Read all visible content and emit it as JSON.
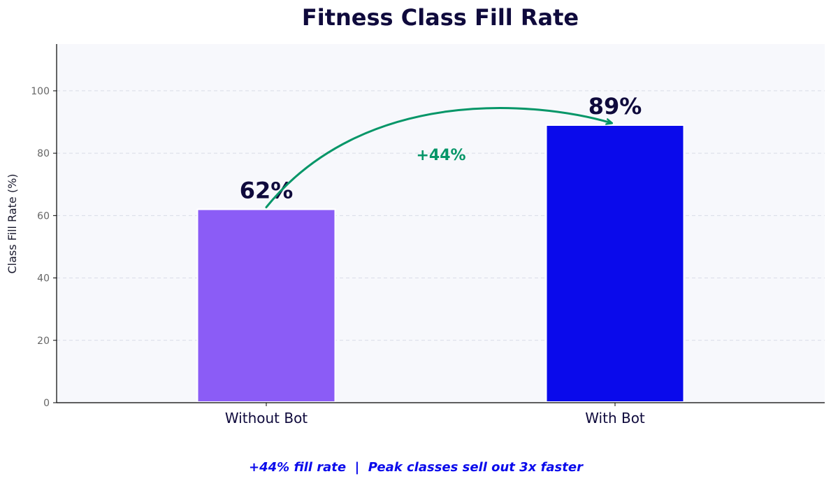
{
  "chart_data": {
    "type": "bar",
    "title": "Fitness Class Fill Rate",
    "xlabel": "",
    "ylabel": "Class Fill Rate (%)",
    "categories": [
      "Without Bot",
      "With Bot"
    ],
    "values": [
      62,
      89
    ],
    "value_labels": [
      "62%",
      "89%"
    ],
    "colors": [
      "#8b5cf6",
      "#0a0aeb"
    ],
    "ylim": [
      0,
      115
    ],
    "yticks": [
      0,
      20,
      40,
      60,
      80,
      100
    ],
    "grid": true,
    "annotation": {
      "text": "+44%",
      "color": "#069668",
      "from_category": "Without Bot",
      "to_category": "With Bot"
    },
    "footer": "+44% fill rate  |  Peak classes sell out 3x faster"
  },
  "colors": {
    "plot_background": "#f7f8fc",
    "title": "#0f0a3c",
    "footer": "#0a0aeb",
    "annotation": "#069668"
  }
}
